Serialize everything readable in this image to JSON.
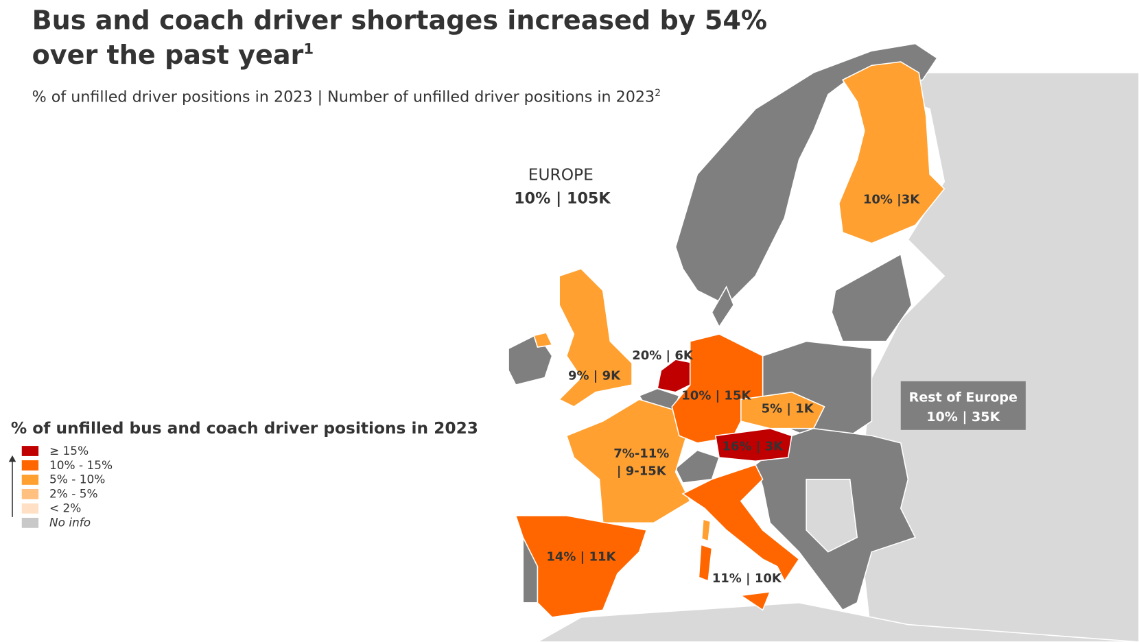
{
  "header": {
    "title_lines": [
      "Bus and coach driver shortages increased by 54%",
      "over the past year"
    ],
    "title_note": "1",
    "subtitle": "% of unfilled driver positions in 2023 | Number of unfilled driver positions in 2023",
    "subtitle_note": "2"
  },
  "map": {
    "europe": {
      "name": "EUROPE",
      "label": "10% | 105K"
    },
    "regions": [
      {
        "lines": [
          "10% |3K"
        ]
      },
      {
        "lines": [
          "9% | 9K"
        ]
      },
      {
        "lines": [
          "20% | 6K"
        ]
      },
      {
        "lines": [
          "10% | 15K"
        ]
      },
      {
        "lines": [
          "5% | 1K"
        ]
      },
      {
        "lines": [
          "16% | 3K"
        ]
      },
      {
        "lines": [
          "7%-11%",
          "| 9-15K"
        ]
      },
      {
        "lines": [
          "14% | 11K"
        ]
      },
      {
        "lines": [
          "11% | 10K"
        ]
      }
    ],
    "rest": {
      "name": "Rest of Europe",
      "label": "10% | 35K"
    }
  },
  "legend": {
    "title": "% of  unfilled bus and coach driver positions in 2023",
    "items": [
      {
        "label": "≥ 15%",
        "color": "#c00000"
      },
      {
        "label": "10% - 15%",
        "color": "#ff6600"
      },
      {
        "label": "5% - 10%",
        "color": "#ffa030"
      },
      {
        "label": "2% - 5%",
        "color": "#ffc080"
      },
      {
        "label": "< 2%",
        "color": "#ffe0c4"
      },
      {
        "label": "No info",
        "color": "#c8c8c8"
      }
    ]
  }
}
